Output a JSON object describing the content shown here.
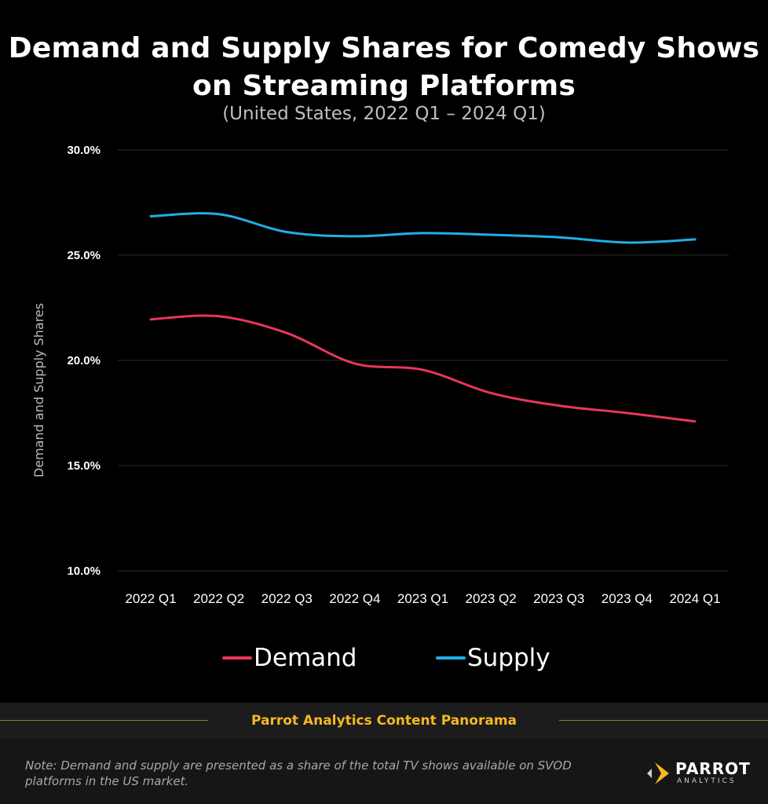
{
  "chart_data": {
    "type": "line",
    "title": "Demand and Supply Shares for Comedy Shows on Streaming Platforms",
    "subtitle": "(United States,  2022 Q1 – 2024 Q1)",
    "ylabel": "Demand and Supply Shares",
    "xlabel": "",
    "categories": [
      "2022 Q1",
      "2022 Q2",
      "2022 Q3",
      "2022 Q4",
      "2023 Q1",
      "2023 Q2",
      "2023 Q3",
      "2023 Q4",
      "2024 Q1"
    ],
    "yticks": [
      "10.0%",
      "15.0%",
      "20.0%",
      "25.0%",
      "30.0%"
    ],
    "ylim": [
      10,
      30
    ],
    "grid": true,
    "legend_position": "bottom",
    "series": [
      {
        "name": "Demand",
        "color": "#e8365b",
        "values": [
          21.95,
          22.1,
          21.3,
          19.85,
          19.55,
          18.45,
          17.85,
          17.5,
          17.1
        ]
      },
      {
        "name": "Supply",
        "color": "#1fb0e8",
        "values": [
          26.85,
          26.95,
          26.1,
          25.9,
          26.05,
          25.97,
          25.85,
          25.6,
          25.75
        ]
      }
    ]
  },
  "legend": {
    "demand": "Demand",
    "supply": "Supply",
    "demand_color": "#e8365b",
    "supply_color": "#1fb0e8"
  },
  "source_band": "Parrot Analytics Content Panorama",
  "note": "Note: Demand and supply are presented as a share of the total TV shows available on SVOD platforms in the US market.",
  "logo": {
    "name": "PARROT",
    "sub": "ANALYTICS",
    "accent": "#f5b821"
  }
}
